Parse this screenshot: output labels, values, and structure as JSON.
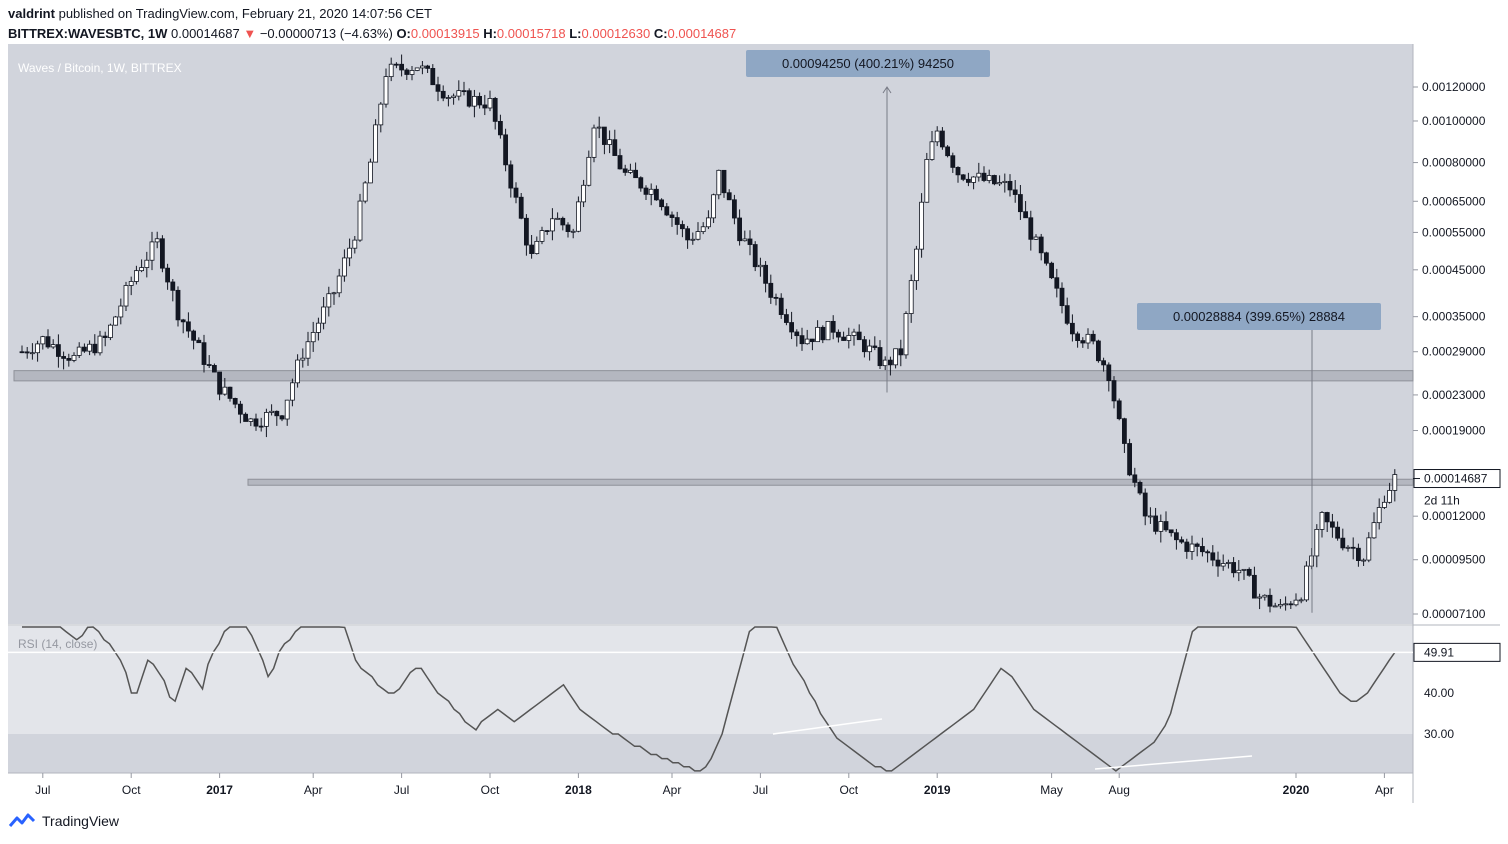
{
  "header": {
    "author": "valdrint",
    "published_text": "published on TradingView.com, February 21, 2020 14:07:56 CET",
    "symbol": "BITTREX:WAVESBTC, 1W",
    "last": "0.00014687",
    "change_arrow": "▼",
    "change": "−0.00000713 (−4.63%)",
    "open_label": "O:",
    "open": "0.00013915",
    "high_label": "H:",
    "high": "0.00015718",
    "low_label": "L:",
    "low": "0.00012630",
    "close_label": "C:",
    "close": "0.00014687"
  },
  "footer": {
    "brand": "TradingView"
  },
  "colors": {
    "pane_bg": "#d1d4dc",
    "rsi_band": "#e3e5ea",
    "candle_up": "#ffffff",
    "candle_down": "#131722",
    "zone": "#a8abb3",
    "measure_label_bg": "#8fa7c4",
    "rsi_line": "#555555"
  },
  "chart_data": [
    {
      "type": "candlestick",
      "title": "Waves / Bitcoin, 1W, BITTREX",
      "scale": "log",
      "y_ticks": [
        "0.00120000",
        "0.00100000",
        "0.00080000",
        "0.00065000",
        "0.00055000",
        "0.00045000",
        "0.00035000",
        "0.00029000",
        "0.00023000",
        "0.00019000",
        "0.00014687",
        "0.00012000",
        "0.00009500",
        "0.00007100"
      ],
      "y_tick_values": [
        0.0012,
        0.001,
        0.0008,
        0.00065,
        0.00055,
        0.00045,
        0.00035,
        0.00029,
        0.00023,
        0.00019,
        0.00014687,
        0.00012,
        9.5e-05,
        7.1e-05
      ],
      "current_price_label": "0.00014687",
      "countdown_label": "2d 11h",
      "support_zones": [
        [
          0.000248,
          0.000262
        ],
        [
          0.0001422,
          0.0001463
        ]
      ],
      "annotations": [
        {
          "label": "0.00094250 (400.21%) 94250",
          "from": 0.000233,
          "to": 0.0012,
          "date_index": 165
        },
        {
          "label": "0.00028884 (399.65%) 28884",
          "from": 7.15e-05,
          "to": 0.00036,
          "date_index": 245
        }
      ],
      "x_labels": [
        "Jul",
        "Oct",
        "2017",
        "Apr",
        "Jul",
        "Oct",
        "2018",
        "Apr",
        "Jul",
        "Oct",
        "2019",
        "May",
        "Aug",
        "2020",
        "Apr"
      ],
      "x_label_bold": [
        false,
        false,
        true,
        false,
        false,
        false,
        true,
        false,
        false,
        false,
        true,
        false,
        false,
        true,
        false
      ],
      "x_label_index": [
        4,
        21,
        38,
        56,
        73,
        90,
        107,
        125,
        142,
        159,
        176,
        198,
        211,
        245,
        262
      ],
      "ohlc": []
    },
    {
      "type": "line",
      "title": "RSI (14, close)",
      "value_label": "49.91",
      "y_ticks": [
        "40.00",
        "30.00"
      ],
      "y_tick_values": [
        40,
        30
      ],
      "band": [
        30,
        70
      ],
      "values": [
        72,
        73,
        68,
        64,
        62,
        61,
        59,
        57,
        55,
        54,
        53,
        54,
        56,
        57,
        55,
        53,
        52,
        50,
        48,
        45,
        40,
        40,
        44,
        48,
        47,
        45,
        43,
        39,
        38,
        42,
        46,
        45,
        43,
        41,
        47,
        50,
        52,
        55,
        57,
        59,
        60,
        58,
        54,
        51,
        48,
        44,
        46,
        50,
        52,
        53,
        55,
        57,
        58,
        60,
        61,
        62,
        62,
        61,
        59,
        56,
        52,
        48,
        46,
        45,
        44,
        42,
        41,
        40,
        40,
        41,
        43,
        45,
        46,
        46,
        44,
        42,
        40,
        39,
        38,
        36,
        35,
        33,
        32,
        31,
        33,
        34,
        35,
        36,
        35,
        34,
        33,
        34,
        35,
        36,
        37,
        38,
        39,
        40,
        41,
        42,
        40,
        38,
        36,
        35,
        34,
        33,
        32,
        31,
        30,
        30,
        29,
        28,
        27,
        27,
        26,
        25,
        25,
        24,
        24,
        23,
        23,
        22,
        22,
        21,
        21,
        22,
        24,
        27,
        30,
        35,
        40,
        45,
        50,
        55,
        60,
        62,
        61,
        59,
        56,
        53,
        50,
        47,
        45,
        43,
        40,
        38,
        35,
        33,
        31,
        29,
        28,
        27,
        26,
        25,
        24,
        23,
        22,
        22,
        21,
        21,
        22,
        23,
        24,
        25,
        26,
        27,
        28,
        29,
        30,
        31,
        32,
        33,
        34,
        35,
        36,
        38,
        40,
        42,
        44,
        46,
        45,
        44,
        42,
        40,
        38,
        36,
        35,
        34,
        33,
        32,
        31,
        30,
        29,
        28,
        27,
        26,
        25,
        24,
        23,
        22,
        21,
        22,
        23,
        24,
        25,
        26,
        27,
        28,
        30,
        32,
        35,
        40,
        45,
        50,
        55,
        58,
        60,
        62,
        63,
        64,
        65,
        66,
        67,
        68,
        69,
        70,
        69,
        68,
        66,
        64,
        62,
        60,
        58,
        56,
        54,
        52,
        50,
        48,
        46,
        44,
        42,
        40,
        39,
        38,
        38,
        39,
        40,
        42,
        44,
        46,
        48,
        49.91
      ]
    }
  ]
}
